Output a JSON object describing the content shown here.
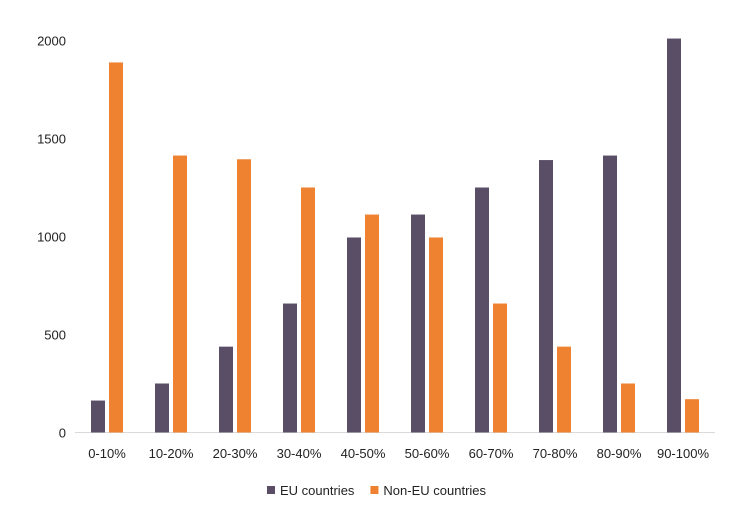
{
  "chart_data": {
    "type": "bar",
    "title": "",
    "xlabel": "",
    "ylabel": "",
    "ylim": [
      0,
      2000
    ],
    "yticks": [
      0,
      500,
      1000,
      1500,
      2000
    ],
    "grid": false,
    "legend_position": "bottom",
    "categories": [
      "0-10%",
      "10-20%",
      "20-30%",
      "30-40%",
      "40-50%",
      "50-60%",
      "60-70%",
      "70-80%",
      "80-90%",
      "90-100%"
    ],
    "series": [
      {
        "name": "EU countries",
        "color": "#5a4e66",
        "values": [
          163,
          250,
          438,
          658,
          995,
          1112,
          1250,
          1390,
          1413,
          2010
        ]
      },
      {
        "name": "Non-EU countries",
        "color": "#ee8230",
        "values": [
          1888,
          1413,
          1394,
          1250,
          1112,
          995,
          658,
          438,
          250,
          170
        ]
      }
    ]
  }
}
